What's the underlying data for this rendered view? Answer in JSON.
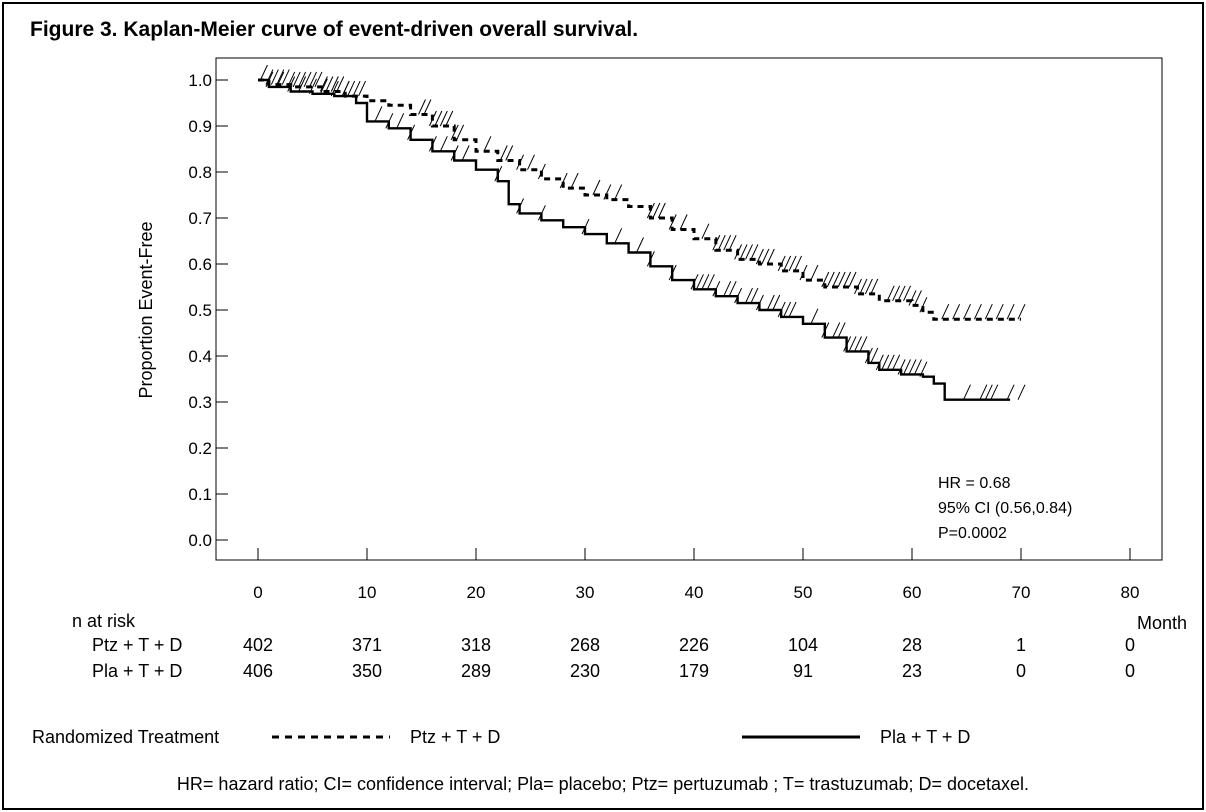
{
  "figure_title": "Figure 3. Kaplan-Meier curve of event-driven overall survival.",
  "stats": {
    "hr": "HR = 0.68",
    "ci": "95% CI (0.56,0.84)",
    "p": "P=0.0002"
  },
  "risk_table": {
    "header": "n at risk",
    "rows": [
      {
        "label": "Ptz + T + D",
        "values": [
          "402",
          "371",
          "318",
          "268",
          "226",
          "104",
          "28",
          "1",
          "0"
        ]
      },
      {
        "label": "Pla + T + D",
        "values": [
          "406",
          "350",
          "289",
          "230",
          "179",
          "91",
          "23",
          "0",
          "0"
        ]
      }
    ]
  },
  "legend": {
    "title": "Randomized Treatment",
    "items": [
      "Ptz + T + D",
      "Pla + T + D"
    ]
  },
  "footnote": "HR= hazard ratio; CI= confidence interval; Pla= placebo; Ptz= pertuzumab ; T= trastuzumab; D= docetaxel.",
  "colors": {
    "line": "#000000",
    "background": "#ffffff"
  },
  "chart_data": {
    "type": "line",
    "subtype": "kaplan-meier",
    "xlabel": "Month",
    "ylabel": "Proportion Event-Free",
    "xlim": [
      0,
      80
    ],
    "ylim": [
      0,
      1
    ],
    "x_ticks": [
      0,
      10,
      20,
      30,
      40,
      50,
      60,
      70,
      80
    ],
    "y_ticks": [
      "0.0",
      "0.1",
      "0.2",
      "0.3",
      "0.4",
      "0.5",
      "0.6",
      "0.7",
      "0.8",
      "0.9",
      "1.0"
    ],
    "grid": false,
    "legend_position": "bottom",
    "series": [
      {
        "name": "Ptz + T + D",
        "style": "dashed",
        "points": [
          [
            0,
            1.0
          ],
          [
            1,
            0.99
          ],
          [
            3,
            0.985
          ],
          [
            6,
            0.975
          ],
          [
            8,
            0.965
          ],
          [
            10,
            0.955
          ],
          [
            12,
            0.945
          ],
          [
            14,
            0.925
          ],
          [
            16,
            0.9
          ],
          [
            18,
            0.87
          ],
          [
            20,
            0.845
          ],
          [
            22,
            0.825
          ],
          [
            24,
            0.805
          ],
          [
            26,
            0.785
          ],
          [
            28,
            0.765
          ],
          [
            30,
            0.75
          ],
          [
            32,
            0.74
          ],
          [
            34,
            0.725
          ],
          [
            36,
            0.7
          ],
          [
            38,
            0.675
          ],
          [
            40,
            0.655
          ],
          [
            42,
            0.63
          ],
          [
            44,
            0.61
          ],
          [
            46,
            0.6
          ],
          [
            48,
            0.585
          ],
          [
            50,
            0.565
          ],
          [
            52,
            0.55
          ],
          [
            55,
            0.535
          ],
          [
            57,
            0.52
          ],
          [
            60,
            0.51
          ],
          [
            61,
            0.495
          ],
          [
            62,
            0.48
          ],
          [
            70,
            0.48
          ]
        ],
        "censor_x": [
          0.5,
          1,
          1.5,
          2,
          2.5,
          3,
          3.5,
          4,
          4.5,
          5,
          5.5,
          6,
          6.5,
          7,
          7.5,
          8,
          8.5,
          9,
          9.5,
          15,
          15.5,
          16,
          16.5,
          17,
          17.5,
          18,
          18.5,
          21,
          22.5,
          23,
          24,
          25,
          26,
          28,
          29,
          31,
          32,
          33,
          36,
          36.5,
          37,
          38,
          39,
          41,
          42,
          42.5,
          43,
          43.5,
          44,
          44.5,
          45,
          45.5,
          46,
          46.5,
          47,
          48,
          48.5,
          49,
          49.5,
          50,
          51,
          52,
          52.5,
          53,
          53.5,
          54,
          54.5,
          55,
          55.5,
          56,
          56.5,
          58,
          58.5,
          59,
          59.5,
          60,
          60.5,
          61,
          63,
          64,
          65,
          66,
          67,
          68,
          69,
          70
        ]
      },
      {
        "name": "Pla + T + D",
        "style": "solid",
        "points": [
          [
            0,
            1.0
          ],
          [
            1,
            0.985
          ],
          [
            3,
            0.975
          ],
          [
            5,
            0.97
          ],
          [
            7,
            0.965
          ],
          [
            9,
            0.95
          ],
          [
            10,
            0.91
          ],
          [
            12,
            0.895
          ],
          [
            14,
            0.87
          ],
          [
            16,
            0.845
          ],
          [
            18,
            0.825
          ],
          [
            20,
            0.805
          ],
          [
            22,
            0.78
          ],
          [
            23,
            0.73
          ],
          [
            24,
            0.71
          ],
          [
            26,
            0.695
          ],
          [
            28,
            0.68
          ],
          [
            30,
            0.665
          ],
          [
            32,
            0.645
          ],
          [
            34,
            0.625
          ],
          [
            36,
            0.595
          ],
          [
            38,
            0.565
          ],
          [
            40,
            0.545
          ],
          [
            42,
            0.53
          ],
          [
            44,
            0.515
          ],
          [
            46,
            0.5
          ],
          [
            48,
            0.485
          ],
          [
            50,
            0.47
          ],
          [
            52,
            0.44
          ],
          [
            54,
            0.41
          ],
          [
            56,
            0.385
          ],
          [
            57,
            0.37
          ],
          [
            59,
            0.36
          ],
          [
            61,
            0.355
          ],
          [
            62,
            0.34
          ],
          [
            63,
            0.305
          ],
          [
            64,
            0.305
          ],
          [
            69,
            0.305
          ]
        ],
        "censor_x": [
          1,
          2,
          3,
          4,
          5,
          6,
          7,
          8,
          11,
          12,
          13,
          14,
          16,
          17,
          18,
          19,
          22,
          24,
          26,
          30,
          33,
          35,
          36,
          38,
          40,
          40.5,
          41,
          41.5,
          42,
          43,
          43.5,
          44,
          45,
          45.5,
          46,
          47,
          47.5,
          48,
          48.5,
          49,
          51,
          52,
          53,
          53.5,
          54,
          54.5,
          55,
          55.5,
          56,
          56.5,
          57,
          57.5,
          58,
          58.5,
          59,
          59.5,
          60,
          60.5,
          61,
          65,
          66.5,
          67,
          67.5,
          69,
          70
        ]
      }
    ],
    "annotations": [
      "HR = 0.68",
      "95% CI (0.56,0.84)",
      "P=0.0002"
    ]
  }
}
